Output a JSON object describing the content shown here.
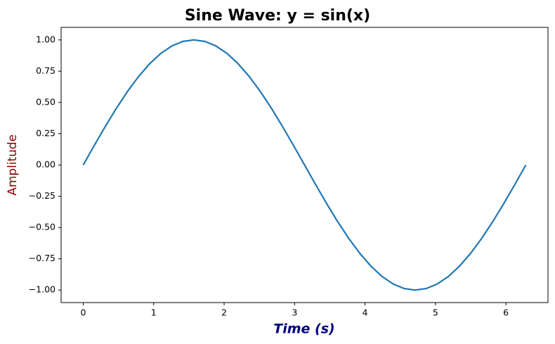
{
  "chart_data": {
    "type": "line",
    "title": "Sine Wave: y = sin(x)",
    "x_label": "Time (s)",
    "y_label": "Amplitude",
    "x": [
      0,
      0.1571,
      0.3142,
      0.4712,
      0.6283,
      0.7854,
      0.9425,
      1.0996,
      1.2566,
      1.4137,
      1.5708,
      1.7279,
      1.885,
      2.042,
      2.1991,
      2.3562,
      2.5133,
      2.6704,
      2.8274,
      2.9845,
      3.1416,
      3.2987,
      3.4558,
      3.6128,
      3.7699,
      3.927,
      4.0841,
      4.2412,
      4.3982,
      4.5553,
      4.7124,
      4.8695,
      5.0265,
      5.1836,
      5.3407,
      5.4978,
      5.6549,
      5.8119,
      5.969,
      6.1261,
      6.2832
    ],
    "series": [
      {
        "color": "#1f77b4",
        "values": [
          0,
          0.1564,
          0.309,
          0.454,
          0.5878,
          0.7071,
          0.809,
          0.891,
          0.9511,
          0.9877,
          1,
          0.9877,
          0.9511,
          0.891,
          0.809,
          0.7071,
          0.5878,
          0.454,
          0.309,
          0.1564,
          0,
          -0.1564,
          -0.309,
          -0.454,
          -0.5878,
          -0.7071,
          -0.809,
          -0.891,
          -0.9511,
          -0.9877,
          -1,
          -0.9877,
          -0.9511,
          -0.891,
          -0.809,
          -0.7071,
          -0.5878,
          -0.454,
          -0.309,
          -0.1564,
          0
        ]
      }
    ],
    "xlim": [
      -0.314,
      6.597
    ],
    "ylim": [
      -1.1,
      1.1
    ],
    "xticks": [
      0,
      1,
      2,
      3,
      4,
      5,
      6
    ],
    "yticks": [
      {
        "value": -1,
        "label": "−1.00"
      },
      {
        "value": -0.75,
        "label": "−0.75"
      },
      {
        "value": -0.5,
        "label": "−0.50"
      },
      {
        "value": -0.25,
        "label": "−0.25"
      },
      {
        "value": 0,
        "label": "0.00"
      },
      {
        "value": 0.25,
        "label": "0.25"
      },
      {
        "value": 0.5,
        "label": "0.50"
      },
      {
        "value": 0.75,
        "label": "0.75"
      },
      {
        "value": 1,
        "label": "1.00"
      }
    ],
    "grid": false
  }
}
